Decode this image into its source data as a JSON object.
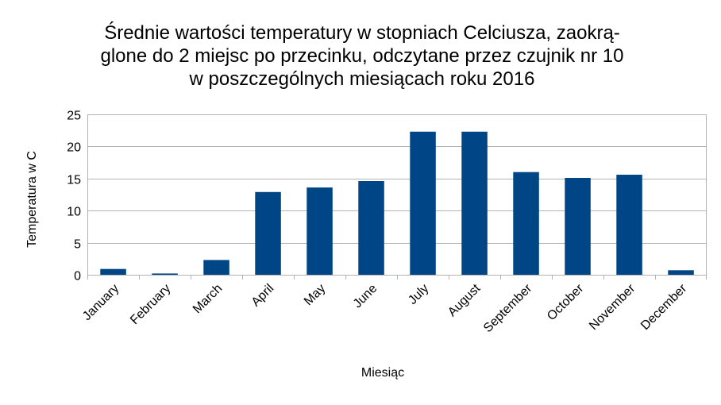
{
  "chart_data": {
    "type": "bar",
    "title_lines": [
      "Średnie wartości temperatury w stopniach Celciusza, zaokrą-",
      "glone do 2 miejsc po przecinku, odczytane przez czujnik nr 10",
      "w poszczególnych miesiącach roku 2016"
    ],
    "xlabel": "Miesiąc",
    "ylabel": "Temperatura w C",
    "categories": [
      "January",
      "February",
      "March",
      "April",
      "May",
      "June",
      "July",
      "August",
      "September",
      "October",
      "November",
      "December"
    ],
    "values": [
      0.9,
      0.2,
      2.3,
      12.9,
      13.6,
      14.6,
      22.3,
      22.3,
      16.0,
      15.1,
      15.6,
      0.7
    ],
    "ylim": [
      0,
      25
    ],
    "yticks": [
      0,
      5,
      10,
      15,
      20,
      25
    ],
    "grid": true,
    "legend": "none",
    "bar_color": "#004586",
    "grid_color": "#b3b3b3"
  }
}
